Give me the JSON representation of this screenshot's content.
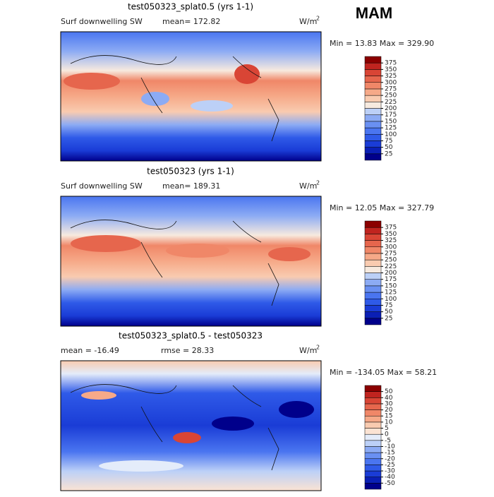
{
  "season": "MAM",
  "panels": [
    {
      "title": "test050323_splat0.5 (yrs 1-1)",
      "variable": "Surf downwelling SW",
      "stats": [
        "mean= 172.82"
      ],
      "units": "W/m",
      "units_power": "2",
      "minmax": "Min =  13.83 Max = 329.90",
      "colorbar": {
        "levels": [
          25,
          50,
          75,
          100,
          125,
          150,
          175,
          200,
          225,
          250,
          275,
          300,
          325,
          350,
          375
        ],
        "colors": [
          "#00008b",
          "#0a1fb5",
          "#1a3cd6",
          "#2f5ae8",
          "#4a75f0",
          "#6a90f2",
          "#8cabf4",
          "#bcd0f7",
          "#f7eadf",
          "#f9cbb0",
          "#f6a988",
          "#f08768",
          "#e6664d",
          "#d94535",
          "#c0241f",
          "#8b0000"
        ]
      }
    },
    {
      "title": "test050323 (yrs 1-1)",
      "variable": "Surf downwelling SW",
      "stats": [
        "mean= 189.31"
      ],
      "units": "W/m",
      "units_power": "2",
      "minmax": "Min =  12.05 Max = 327.79",
      "colorbar": {
        "levels": [
          25,
          50,
          75,
          100,
          125,
          150,
          175,
          200,
          225,
          250,
          275,
          300,
          325,
          350,
          375
        ],
        "colors": [
          "#00008b",
          "#0a1fb5",
          "#1a3cd6",
          "#2f5ae8",
          "#4a75f0",
          "#6a90f2",
          "#8cabf4",
          "#bcd0f7",
          "#f7eadf",
          "#f9cbb0",
          "#f6a988",
          "#f08768",
          "#e6664d",
          "#d94535",
          "#c0241f",
          "#8b0000"
        ]
      }
    },
    {
      "title": "test050323_splat0.5 - test050323",
      "variable": null,
      "stats": [
        "mean = -16.49",
        "rmse =  28.33"
      ],
      "units": "W/m",
      "units_power": "2",
      "minmax": "Min = -134.05 Max =  58.21",
      "colorbar": {
        "levels": [
          -50,
          -40,
          -30,
          -25,
          -20,
          -15,
          -10,
          -5,
          0,
          5,
          10,
          15,
          20,
          30,
          40,
          50
        ],
        "colors": [
          "#00008b",
          "#0a1fb5",
          "#1a3cd6",
          "#2f5ae8",
          "#4a75f0",
          "#6a90f2",
          "#8cabf4",
          "#bcd0f7",
          "#e4ecfa",
          "#fbe3d3",
          "#f9cbb0",
          "#f6a988",
          "#f08768",
          "#e6664d",
          "#d94535",
          "#c0241f",
          "#8b0000"
        ]
      }
    }
  ]
}
